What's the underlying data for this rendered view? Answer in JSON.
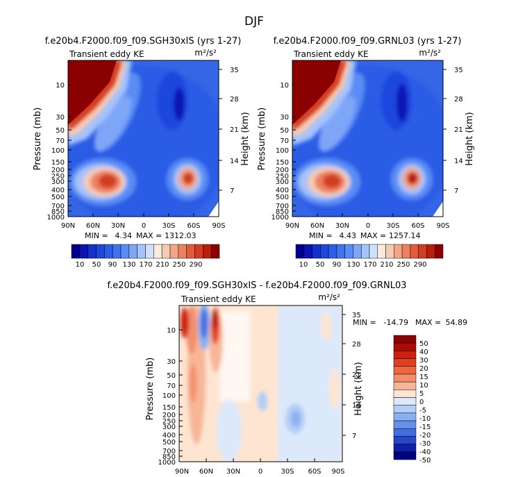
{
  "figure": {
    "title": "DJF"
  },
  "chart_data": [
    {
      "id": "panel1",
      "type": "heatmap",
      "title": "f.e20b4.F2000.f09_f09.SGH30xIS (yrs 1-27)",
      "left_label": "Transient eddy KE",
      "units": "m²/s²",
      "ylabel": "Pressure (mb)",
      "y2label": "Height (km)",
      "x_ticks": [
        "90N",
        "60N",
        "30N",
        "0",
        "30S",
        "60S",
        "90S"
      ],
      "p_ticks": [
        "10",
        "30",
        "50",
        "70",
        "100",
        "150",
        "200",
        "250",
        "300",
        "400",
        "500",
        "700",
        "850",
        "1000"
      ],
      "p_values": [
        10,
        30,
        50,
        70,
        100,
        150,
        200,
        250,
        300,
        400,
        500,
        700,
        850,
        1000
      ],
      "h_ticks": [
        "35",
        "28",
        "21",
        "14",
        "7"
      ],
      "h_values": [
        35,
        28,
        21,
        14,
        7
      ],
      "min_label": "MIN =",
      "min_value": "4.34",
      "max_label": "MAX =",
      "max_value": "1312.03",
      "features": [
        {
          "lat": 40,
          "p": 300,
          "peak": 300,
          "name": "northern jet"
        },
        {
          "lat": -48,
          "p": 300,
          "peak": 300,
          "name": "southern jet"
        },
        {
          "lat": 90,
          "p": 10,
          "peak": 1312,
          "name": "polar vortex"
        }
      ],
      "colorbar": {
        "labels": [
          "10",
          "50",
          "90",
          "130",
          "170",
          "210",
          "250",
          "290"
        ],
        "levels": [
          10,
          30,
          50,
          70,
          90,
          110,
          130,
          150,
          170,
          190,
          210,
          230,
          250,
          270,
          290
        ]
      }
    },
    {
      "id": "panel2",
      "type": "heatmap",
      "title": "f.e20b4.F2000.f09_f09.GRNL03 (yrs 1-27)",
      "left_label": "Transient eddy KE",
      "units": "m²/s²",
      "ylabel": "Pressure (mb)",
      "y2label": "Height (km)",
      "x_ticks": [
        "90N",
        "60N",
        "30N",
        "0",
        "30S",
        "60S",
        "90S"
      ],
      "p_ticks": [
        "10",
        "30",
        "50",
        "70",
        "100",
        "150",
        "200",
        "250",
        "300",
        "400",
        "500",
        "700",
        "850",
        "1000"
      ],
      "p_values": [
        10,
        30,
        50,
        70,
        100,
        150,
        200,
        250,
        300,
        400,
        500,
        700,
        850,
        1000
      ],
      "h_ticks": [
        "35",
        "28",
        "21",
        "14",
        "7"
      ],
      "h_values": [
        35,
        28,
        21,
        14,
        7
      ],
      "min_label": "MIN =",
      "min_value": "4.43",
      "max_label": "MAX =",
      "max_value": "1257.14",
      "features": [
        {
          "lat": 40,
          "p": 300,
          "peak": 300,
          "name": "northern jet"
        },
        {
          "lat": -48,
          "p": 300,
          "peak": 300,
          "name": "southern jet"
        },
        {
          "lat": 90,
          "p": 10,
          "peak": 1257,
          "name": "polar vortex"
        }
      ],
      "colorbar": {
        "labels": [
          "10",
          "50",
          "90",
          "130",
          "170",
          "210",
          "250",
          "290"
        ],
        "levels": [
          10,
          30,
          50,
          70,
          90,
          110,
          130,
          150,
          170,
          190,
          210,
          230,
          250,
          270,
          290
        ]
      }
    },
    {
      "id": "panel3",
      "type": "heatmap",
      "title": "f.e20b4.F2000.f09_f09.SGH30xIS - f.e20b4.F2000.f09_f09.GRNL03",
      "left_label": "Transient eddy KE",
      "units": "m²/s²",
      "ylabel": "Pressure (mb)",
      "y2label": "Height (km)",
      "x_ticks": [
        "90N",
        "60N",
        "30N",
        "0",
        "30S",
        "60S",
        "90S"
      ],
      "p_ticks": [
        "10",
        "30",
        "50",
        "70",
        "100",
        "150",
        "200",
        "250",
        "300",
        "400",
        "500",
        "700",
        "850",
        "1000"
      ],
      "p_values": [
        10,
        30,
        50,
        70,
        100,
        150,
        200,
        250,
        300,
        400,
        500,
        700,
        850,
        1000
      ],
      "h_ticks": [
        "35",
        "28",
        "21",
        "14",
        "7"
      ],
      "h_values": [
        35,
        28,
        21,
        14,
        7
      ],
      "min_label": "MIN =",
      "min_value": "-14.79",
      "max_label": "MAX =",
      "max_value": "54.89",
      "colorbar": {
        "labels": [
          "50",
          "40",
          "30",
          "20",
          "15",
          "10",
          "5",
          "0",
          "-5",
          "-10",
          "-15",
          "-20",
          "-30",
          "-40",
          "-50"
        ],
        "levels": [
          50,
          40,
          30,
          20,
          15,
          10,
          5,
          0,
          -5,
          -10,
          -15,
          -20,
          -30,
          -40,
          -50
        ]
      }
    }
  ],
  "colors": {
    "seq": [
      "#000090",
      "#0b14b2",
      "#1630cc",
      "#1f47de",
      "#2c5ee8",
      "#3e74ef",
      "#5a8cf4",
      "#7ea6f7",
      "#a6c3fa",
      "#d0e1fd",
      "#fbebdc",
      "#f7cbb3",
      "#f2a688",
      "#ec8160",
      "#e25b3c",
      "#d23c20",
      "#b91d0c",
      "#8b0000"
    ],
    "div": [
      "#8b0000",
      "#b00a04",
      "#cc2010",
      "#e04020",
      "#ec6640",
      "#f38e6c",
      "#f8b698",
      "#fde5d2",
      "#dce9fb",
      "#b2cdf7",
      "#8bb0f2",
      "#6690ea",
      "#436de0",
      "#2547c8",
      "#0f20a8",
      "#000080"
    ]
  }
}
